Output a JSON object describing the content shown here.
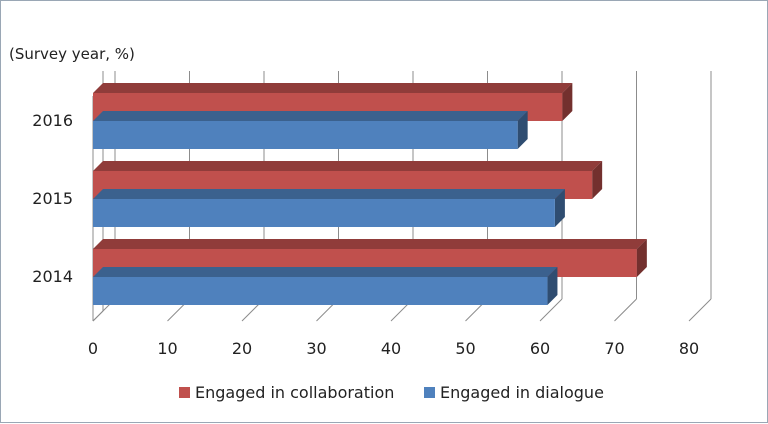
{
  "chart_data": {
    "type": "bar",
    "orientation": "horizontal",
    "three_d": true,
    "y_axis_unit_label": "(Survey year, %)",
    "categories": [
      "2016",
      "2015",
      "2014"
    ],
    "series": [
      {
        "name": "Engaged in collaboration",
        "color": "#C0504D",
        "values": [
          63,
          67,
          73
        ]
      },
      {
        "name": "Engaged in dialogue",
        "color": "#4F81BD",
        "values": [
          57,
          62,
          61
        ]
      }
    ],
    "xlim": [
      0,
      80
    ],
    "x_ticks": [
      "0",
      "10",
      "20",
      "30",
      "40",
      "50",
      "60",
      "70",
      "80"
    ],
    "grid": true,
    "legend_position": "bottom"
  }
}
